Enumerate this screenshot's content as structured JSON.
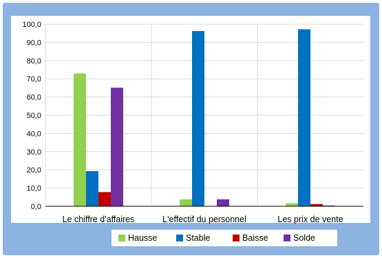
{
  "chart_data": {
    "type": "bar",
    "title": "",
    "xlabel": "",
    "ylabel": "",
    "categories": [
      "Le chiffre d'affaires",
      "L'effectif du personnel",
      "Les prix de vente"
    ],
    "series": [
      {
        "name": "Hausse",
        "color": "#92d050",
        "values": [
          72.9,
          3.8,
          1.6
        ]
      },
      {
        "name": "Stable",
        "color": "#0070c0",
        "values": [
          19.3,
          96.2,
          97.2
        ]
      },
      {
        "name": "Baisse",
        "color": "#c00000",
        "values": [
          7.8,
          0.0,
          1.2
        ]
      },
      {
        "name": "Solde",
        "color": "#7030a0",
        "values": [
          65.1,
          3.8,
          0.4
        ]
      }
    ],
    "ylim": [
      0,
      100
    ],
    "yticks": [
      "0,0",
      "10,0",
      "20,0",
      "30,0",
      "40,0",
      "50,0",
      "60,0",
      "70,0",
      "80,0",
      "90,0",
      "100,0"
    ],
    "grid": true,
    "legend_position": "bottom",
    "background_color": "#8db3e2"
  }
}
